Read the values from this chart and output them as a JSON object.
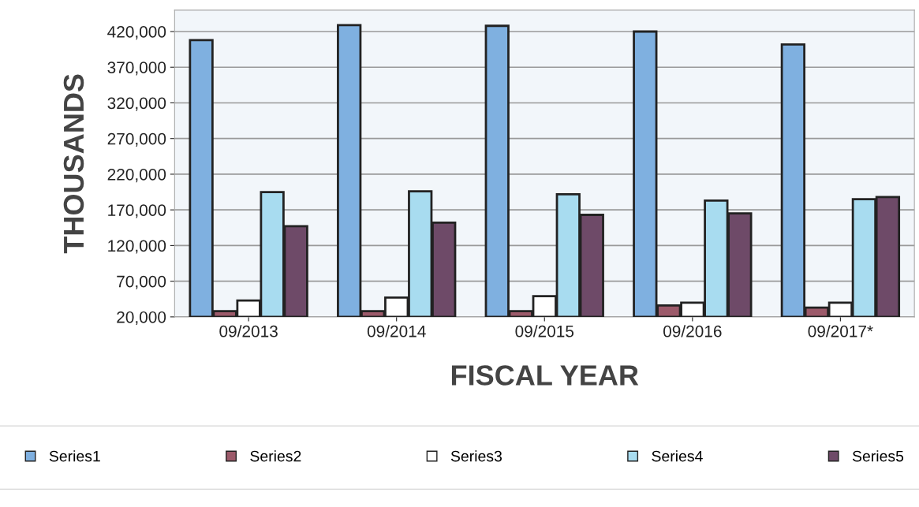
{
  "chart_data": {
    "type": "bar",
    "xlabel": "FISCAL YEAR",
    "ylabel": "THOUSANDS",
    "categories": [
      "09/2013",
      "09/2014",
      "09/2015",
      "09/2016",
      "09/2017*"
    ],
    "series": [
      {
        "name": "Series1",
        "color": "#7fb0e0",
        "values": [
          408000,
          429000,
          428000,
          420000,
          402000
        ]
      },
      {
        "name": "Series2",
        "color": "#9c5a6a",
        "values": [
          28000,
          28000,
          28000,
          36000,
          33000
        ]
      },
      {
        "name": "Series3",
        "color": "#ffffff",
        "values": [
          43000,
          47000,
          49000,
          40000,
          40000
        ]
      },
      {
        "name": "Series4",
        "color": "#a8dcf0",
        "values": [
          195000,
          196000,
          192000,
          183000,
          185000
        ]
      },
      {
        "name": "Series5",
        "color": "#6e4a68",
        "values": [
          147000,
          152000,
          163000,
          165000,
          188000
        ]
      }
    ],
    "ylim": [
      20000,
      450000
    ],
    "yticks": [
      {
        "value": 20000,
        "label": "20,000"
      },
      {
        "value": 70000,
        "label": "70,000"
      },
      {
        "value": 120000,
        "label": "120,000"
      },
      {
        "value": 170000,
        "label": "170,000"
      },
      {
        "value": 220000,
        "label": "220,000"
      },
      {
        "value": 270000,
        "label": "270,000"
      },
      {
        "value": 320000,
        "label": "320,000"
      },
      {
        "value": 370000,
        "label": "370,000"
      },
      {
        "value": 420000,
        "label": "420,000"
      }
    ],
    "grid": "y",
    "legend": "bottom"
  }
}
